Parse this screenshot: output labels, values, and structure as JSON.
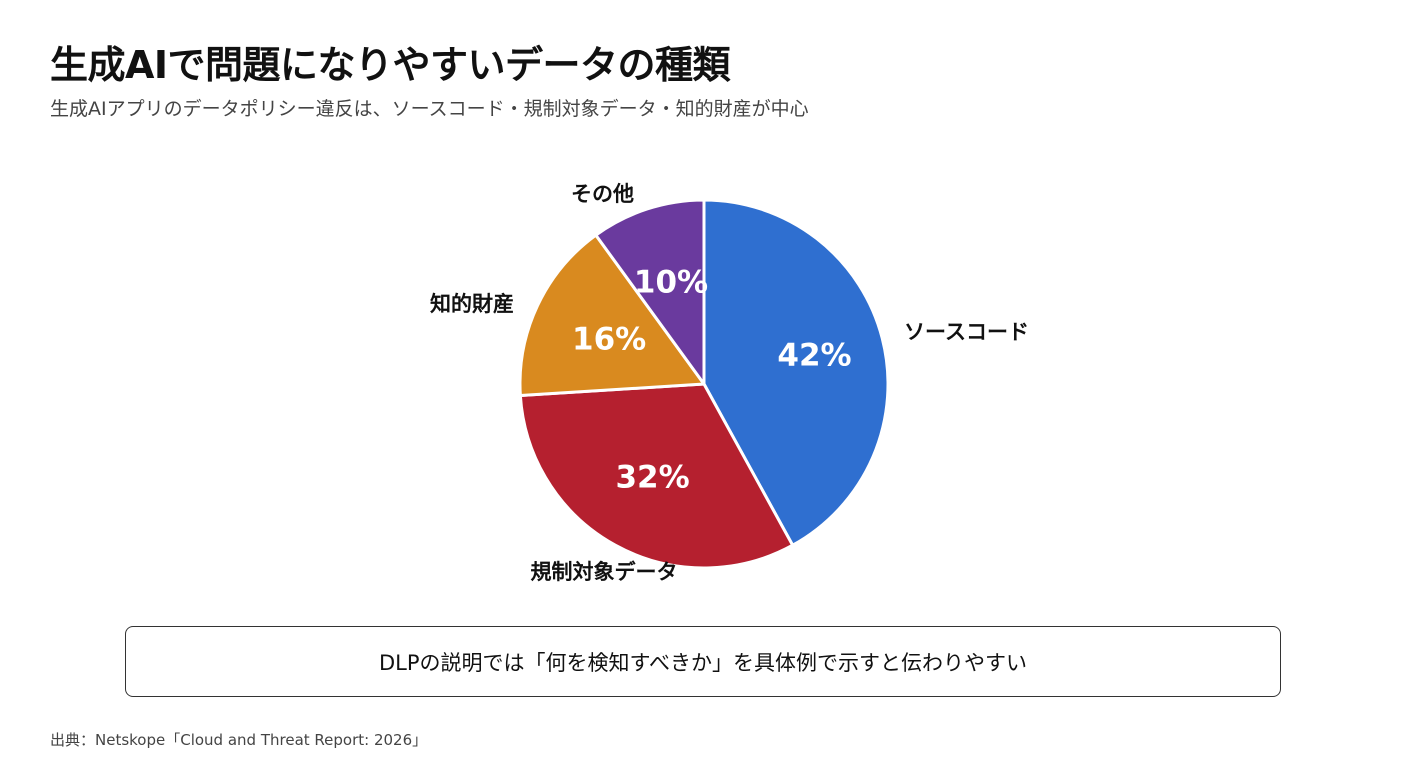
{
  "header": {
    "title": "生成AIで問題になりやすいデータの種類",
    "subtitle": "生成AIアプリのデータポリシー違反は、ソースコード・規制対象データ・知的財産が中心"
  },
  "chart_data": {
    "type": "pie",
    "categories": [
      "ソースコード",
      "規制対象データ",
      "知的財産",
      "その他"
    ],
    "values": [
      42,
      32,
      16,
      10
    ],
    "value_labels": [
      "42%",
      "32%",
      "16%",
      "10%"
    ],
    "colors": [
      "#2F6FD0",
      "#B5202F",
      "#D98A1F",
      "#6A3A9E"
    ],
    "start_angle_deg": 0,
    "direction": "clockwise",
    "legend": "none"
  },
  "callout": {
    "text": "DLPの説明では「何を検知すべきか」を具体例で示すと伝わりやすい"
  },
  "footer": {
    "source": "出典：Netskope「Cloud and Threat Report: 2026」"
  }
}
